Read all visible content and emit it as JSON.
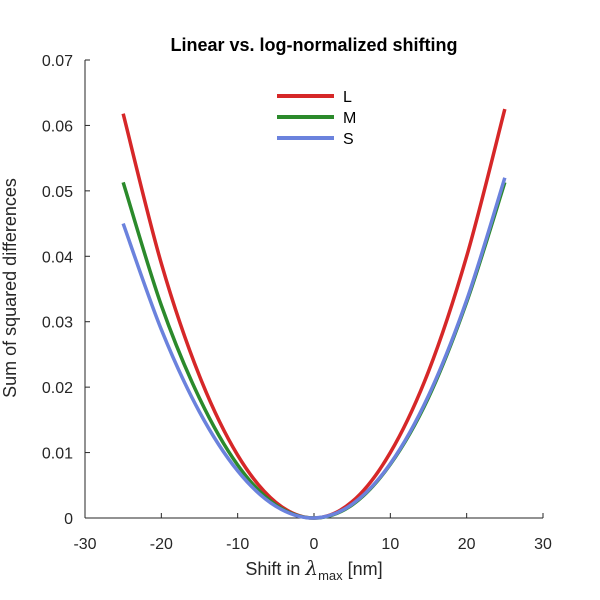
{
  "chart_data": {
    "type": "line",
    "title": "Linear vs. log-normalized shifting",
    "xlabel": {
      "prefix": "Shift in ",
      "symbol": "λ",
      "subscript": "max",
      "suffix": " [nm]"
    },
    "ylabel": "Sum of squared differences",
    "xlim": [
      -30,
      30
    ],
    "ylim": [
      0,
      0.07
    ],
    "x_ticks": [
      -30,
      -20,
      -10,
      0,
      10,
      20,
      30
    ],
    "y_ticks": [
      0,
      0.01,
      0.02,
      0.03,
      0.04,
      0.05,
      0.06,
      0.07
    ],
    "x_tick_labels": [
      "-30",
      "-20",
      "-10",
      "0",
      "10",
      "20",
      "30"
    ],
    "y_tick_labels": [
      "0",
      "0.01",
      "0.02",
      "0.03",
      "0.04",
      "0.05",
      "0.06",
      "0.07"
    ],
    "grid": false,
    "legend_position": "top-center",
    "x": [
      -25,
      -20,
      -15,
      -10,
      -5,
      0,
      5,
      10,
      15,
      20,
      25
    ],
    "series": [
      {
        "name": "L",
        "color": "#d62728",
        "values": [
          0.0618,
          0.0389,
          0.0217,
          0.0096,
          0.0024,
          0.0,
          0.0025,
          0.01,
          0.0224,
          0.04,
          0.0625
        ]
      },
      {
        "name": "M",
        "color": "#2b8a2b",
        "values": [
          0.0513,
          0.0325,
          0.0183,
          0.0081,
          0.002,
          0.0,
          0.002,
          0.0082,
          0.0184,
          0.033,
          0.0513
        ]
      },
      {
        "name": "S",
        "color": "#6b82dd",
        "values": [
          0.045,
          0.0288,
          0.0162,
          0.0072,
          0.0018,
          0.0,
          0.0021,
          0.0083,
          0.0187,
          0.0333,
          0.052
        ]
      }
    ]
  }
}
